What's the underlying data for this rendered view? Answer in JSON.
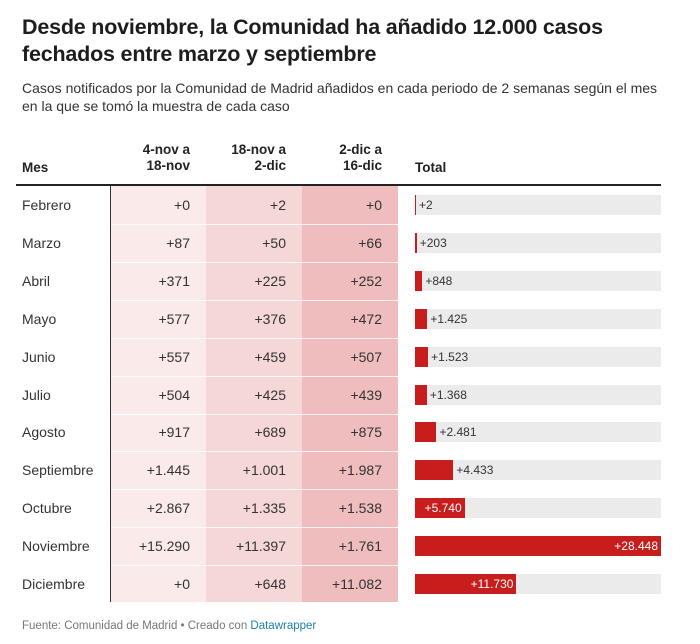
{
  "title": "Desde noviembre, la Comunidad ha añadido 12.000 casos fechados entre marzo y septiembre",
  "subtitle": "Casos notificados por la Comunidad de Madrid añadidos en cada periodo de 2 semanas según el mes en la que se tomó la muestra de cada caso",
  "footer": {
    "source": "Fuente: Comunidad de Madrid • Creado con ",
    "link": "Datawrapper"
  },
  "colors": {
    "bar": "#c71e1d",
    "col1": "#fbeaea",
    "col2": "#f5d7d7",
    "col3": "#efbdbd"
  },
  "chart_data": {
    "type": "table",
    "headers": {
      "mes": "Mes",
      "c1a": "4-nov a",
      "c1b": "18-nov",
      "c2a": "18-nov a",
      "c2b": "2-dic",
      "c3a": "2-dic a",
      "c3b": "16-dic",
      "total": "Total"
    },
    "rows": [
      {
        "mes": "Febrero",
        "c1": "+0",
        "c2": "+2",
        "c3": "+0",
        "total_label": "+2",
        "total": 2
      },
      {
        "mes": "Marzo",
        "c1": "+87",
        "c2": "+50",
        "c3": "+66",
        "total_label": "+203",
        "total": 203
      },
      {
        "mes": "Abril",
        "c1": "+371",
        "c2": "+225",
        "c3": "+252",
        "total_label": "+848",
        "total": 848
      },
      {
        "mes": "Mayo",
        "c1": "+577",
        "c2": "+376",
        "c3": "+472",
        "total_label": "+1.425",
        "total": 1425
      },
      {
        "mes": "Junio",
        "c1": "+557",
        "c2": "+459",
        "c3": "+507",
        "total_label": "+1.523",
        "total": 1523
      },
      {
        "mes": "Julio",
        "c1": "+504",
        "c2": "+425",
        "c3": "+439",
        "total_label": "+1.368",
        "total": 1368
      },
      {
        "mes": "Agosto",
        "c1": "+917",
        "c2": "+689",
        "c3": "+875",
        "total_label": "+2.481",
        "total": 2481
      },
      {
        "mes": "Septiembre",
        "c1": "+1.445",
        "c2": "+1.001",
        "c3": "+1.987",
        "total_label": "+4.433",
        "total": 4433
      },
      {
        "mes": "Octubre",
        "c1": "+2.867",
        "c2": "+1.335",
        "c3": "+1.538",
        "total_label": "+5.740",
        "total": 5740
      },
      {
        "mes": "Noviembre",
        "c1": "+15.290",
        "c2": "+11.397",
        "c3": "+1.761",
        "total_label": "+28.448",
        "total": 28448
      },
      {
        "mes": "Diciembre",
        "c1": "+0",
        "c2": "+648",
        "c3": "+11.082",
        "total_label": "+11.730",
        "total": 11730
      }
    ],
    "total_max": 28448
  }
}
